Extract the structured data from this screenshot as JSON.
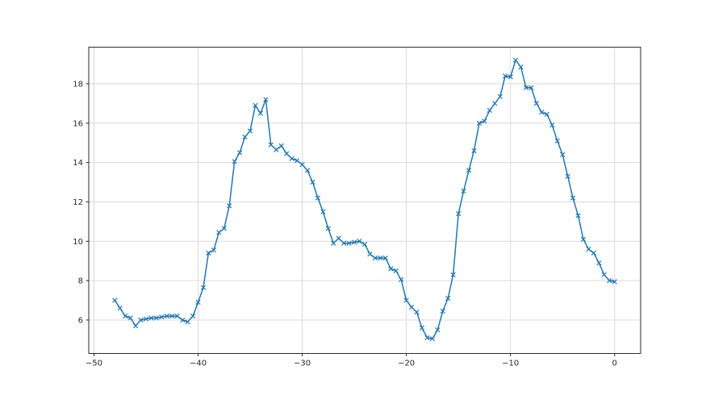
{
  "figure": {
    "background_color": "#ffffff"
  },
  "chart_data": {
    "type": "line",
    "title": "",
    "xlabel": "",
    "ylabel": "",
    "legend": null,
    "grid": true,
    "line_color": "#1f77b4",
    "marker": "x",
    "grid_color": "#d9d9d9",
    "spine_color": "#2b2b2b",
    "tick_label_color": "#262626",
    "xlim": [
      -50.5,
      2.5
    ],
    "ylim": [
      4.3,
      19.86
    ],
    "xticks": [
      -50,
      -40,
      -30,
      -20,
      -10,
      0
    ],
    "yticks": [
      6,
      8,
      10,
      12,
      14,
      16,
      18
    ],
    "x": [
      -48.0,
      -47.5,
      -47.0,
      -46.5,
      -46.0,
      -45.5,
      -45.0,
      -44.5,
      -44.0,
      -43.5,
      -43.0,
      -42.5,
      -42.0,
      -41.5,
      -41.0,
      -40.5,
      -40.0,
      -39.5,
      -39.0,
      -38.5,
      -38.0,
      -37.5,
      -37.0,
      -36.5,
      -36.0,
      -35.5,
      -35.0,
      -34.5,
      -34.0,
      -33.5,
      -33.0,
      -32.5,
      -32.0,
      -31.5,
      -31.0,
      -30.5,
      -30.0,
      -29.5,
      -29.0,
      -28.5,
      -28.0,
      -27.5,
      -27.0,
      -26.5,
      -26.0,
      -25.5,
      -25.0,
      -24.5,
      -24.0,
      -23.5,
      -23.0,
      -22.5,
      -22.0,
      -21.5,
      -21.0,
      -20.5,
      -20.0,
      -19.5,
      -19.0,
      -18.5,
      -18.0,
      -17.5,
      -17.0,
      -16.5,
      -16.0,
      -15.5,
      -15.0,
      -14.5,
      -14.0,
      -13.5,
      -13.0,
      -12.5,
      -12.0,
      -11.5,
      -11.0,
      -10.5,
      -10.0,
      -9.5,
      -9.0,
      -8.5,
      -8.0,
      -7.5,
      -7.0,
      -6.5,
      -6.0,
      -5.5,
      -5.0,
      -4.5,
      -4.0,
      -3.5,
      -3.0,
      -2.5,
      -2.0,
      -1.5,
      -1.0,
      -0.5,
      0.0
    ],
    "y": [
      7.0,
      6.6,
      6.2,
      6.1,
      5.7,
      6.0,
      6.05,
      6.1,
      6.1,
      6.15,
      6.2,
      6.2,
      6.2,
      6.0,
      5.9,
      6.2,
      6.9,
      7.65,
      9.4,
      9.55,
      10.45,
      10.65,
      11.8,
      14.05,
      14.5,
      15.3,
      15.6,
      16.9,
      16.5,
      17.2,
      14.9,
      14.65,
      14.85,
      14.45,
      14.2,
      14.1,
      13.9,
      13.6,
      13.0,
      12.2,
      11.5,
      10.65,
      9.9,
      10.15,
      9.9,
      9.9,
      9.95,
      10.0,
      9.85,
      9.35,
      9.15,
      9.15,
      9.15,
      8.6,
      8.5,
      8.05,
      7.0,
      6.65,
      6.4,
      5.6,
      5.1,
      5.05,
      5.5,
      6.45,
      7.1,
      8.3,
      11.4,
      12.55,
      13.6,
      14.6,
      16.0,
      16.1,
      16.65,
      17.0,
      17.35,
      18.4,
      18.35,
      19.2,
      18.85,
      17.8,
      17.8,
      17.0,
      16.55,
      16.45,
      15.9,
      15.1,
      14.4,
      13.3,
      12.2,
      11.3,
      10.1,
      9.6,
      9.4,
      8.9,
      8.3,
      8.0,
      7.95
    ]
  }
}
